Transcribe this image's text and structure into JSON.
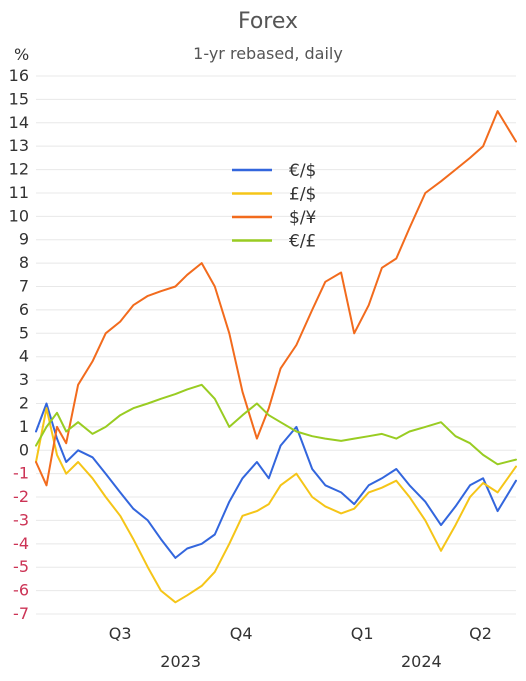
{
  "chart_data": {
    "type": "line",
    "title": "Forex",
    "subtitle": "1-yr rebased, daily",
    "ylabel": "%",
    "ylim": [
      -7,
      16
    ],
    "yticks": [
      -7,
      -6,
      -5,
      -4,
      -3,
      -2,
      -1,
      0,
      1,
      2,
      3,
      4,
      5,
      6,
      7,
      8,
      9,
      10,
      11,
      12,
      13,
      14,
      15,
      16
    ],
    "ytick_colors": {
      "negative": "#cc3355",
      "positive": "#333333"
    },
    "grid": true,
    "legend_position": "center",
    "x_range": [
      "2023-06-12",
      "2024-06-11"
    ],
    "xticks": [
      {
        "label": "Q3",
        "at": "2023-08-15"
      },
      {
        "label": "Q4",
        "at": "2023-11-15"
      },
      {
        "label": "Q1",
        "at": "2024-02-15"
      },
      {
        "label": "Q2",
        "at": "2024-05-15"
      }
    ],
    "year_labels": [
      {
        "label": "2023",
        "at": "2023-09-30"
      },
      {
        "label": "2024",
        "at": "2024-03-31"
      }
    ],
    "series": [
      {
        "name": "€/$",
        "color": "#3366dd",
        "x": [
          "2023-06-12",
          "2023-06-20",
          "2023-06-28",
          "2023-07-05",
          "2023-07-14",
          "2023-07-25",
          "2023-08-04",
          "2023-08-15",
          "2023-08-25",
          "2023-09-05",
          "2023-09-15",
          "2023-09-26",
          "2023-10-05",
          "2023-10-16",
          "2023-10-26",
          "2023-11-06",
          "2023-11-16",
          "2023-11-27",
          "2023-12-06",
          "2023-12-15",
          "2023-12-27",
          "2024-01-08",
          "2024-01-18",
          "2024-01-30",
          "2024-02-09",
          "2024-02-20",
          "2024-03-01",
          "2024-03-12",
          "2024-03-22",
          "2024-04-03",
          "2024-04-15",
          "2024-04-26",
          "2024-05-07",
          "2024-05-17",
          "2024-05-28",
          "2024-06-11"
        ],
        "y": [
          0.8,
          2.0,
          0.5,
          -0.5,
          0.0,
          -0.3,
          -1.0,
          -1.8,
          -2.5,
          -3.0,
          -3.8,
          -4.6,
          -4.2,
          -4.0,
          -3.6,
          -2.2,
          -1.2,
          -0.5,
          -1.2,
          0.2,
          1.0,
          -0.8,
          -1.5,
          -1.8,
          -2.3,
          -1.5,
          -1.2,
          -0.8,
          -1.5,
          -2.2,
          -3.2,
          -2.4,
          -1.5,
          -1.2,
          -2.6,
          -1.3
        ]
      },
      {
        "name": "£/$",
        "color": "#f5c518",
        "x": [
          "2023-06-12",
          "2023-06-20",
          "2023-06-28",
          "2023-07-05",
          "2023-07-14",
          "2023-07-25",
          "2023-08-04",
          "2023-08-15",
          "2023-08-25",
          "2023-09-05",
          "2023-09-15",
          "2023-09-26",
          "2023-10-05",
          "2023-10-16",
          "2023-10-26",
          "2023-11-06",
          "2023-11-16",
          "2023-11-27",
          "2023-12-06",
          "2023-12-15",
          "2023-12-27",
          "2024-01-08",
          "2024-01-18",
          "2024-01-30",
          "2024-02-09",
          "2024-02-20",
          "2024-03-01",
          "2024-03-12",
          "2024-03-22",
          "2024-04-03",
          "2024-04-15",
          "2024-04-26",
          "2024-05-07",
          "2024-05-17",
          "2024-05-28",
          "2024-06-11"
        ],
        "y": [
          -0.5,
          1.8,
          -0.2,
          -1.0,
          -0.5,
          -1.2,
          -2.0,
          -2.8,
          -3.8,
          -5.0,
          -6.0,
          -6.5,
          -6.2,
          -5.8,
          -5.2,
          -4.0,
          -2.8,
          -2.6,
          -2.3,
          -1.5,
          -1.0,
          -2.0,
          -2.4,
          -2.7,
          -2.5,
          -1.8,
          -1.6,
          -1.3,
          -2.0,
          -3.0,
          -4.3,
          -3.2,
          -2.0,
          -1.4,
          -1.8,
          -0.7
        ]
      },
      {
        "name": "$/¥",
        "color": "#f26b1d",
        "x": [
          "2023-06-12",
          "2023-06-20",
          "2023-06-28",
          "2023-07-05",
          "2023-07-14",
          "2023-07-25",
          "2023-08-04",
          "2023-08-15",
          "2023-08-25",
          "2023-09-05",
          "2023-09-15",
          "2023-09-26",
          "2023-10-05",
          "2023-10-16",
          "2023-10-26",
          "2023-11-06",
          "2023-11-16",
          "2023-11-27",
          "2023-12-06",
          "2023-12-15",
          "2023-12-27",
          "2024-01-08",
          "2024-01-18",
          "2024-01-30",
          "2024-02-09",
          "2024-02-20",
          "2024-03-01",
          "2024-03-12",
          "2024-03-22",
          "2024-04-03",
          "2024-04-15",
          "2024-04-26",
          "2024-05-07",
          "2024-05-17",
          "2024-05-28",
          "2024-06-11"
        ],
        "y": [
          -0.5,
          -1.5,
          1.0,
          0.3,
          2.8,
          3.8,
          5.0,
          5.5,
          6.2,
          6.6,
          6.8,
          7.0,
          7.5,
          8.0,
          7.0,
          5.0,
          2.5,
          0.5,
          1.8,
          3.5,
          4.5,
          6.0,
          7.2,
          7.6,
          5.0,
          6.2,
          7.8,
          8.2,
          9.5,
          11.0,
          11.5,
          12.0,
          12.5,
          13.0,
          14.5,
          13.2
        ]
      },
      {
        "name": "€/£",
        "color": "#99cc22",
        "x": [
          "2023-06-12",
          "2023-06-20",
          "2023-06-28",
          "2023-07-05",
          "2023-07-14",
          "2023-07-25",
          "2023-08-04",
          "2023-08-15",
          "2023-08-25",
          "2023-09-05",
          "2023-09-15",
          "2023-09-26",
          "2023-10-05",
          "2023-10-16",
          "2023-10-26",
          "2023-11-06",
          "2023-11-16",
          "2023-11-27",
          "2023-12-06",
          "2023-12-15",
          "2023-12-27",
          "2024-01-08",
          "2024-01-18",
          "2024-01-30",
          "2024-02-09",
          "2024-02-20",
          "2024-03-01",
          "2024-03-12",
          "2024-03-22",
          "2024-04-03",
          "2024-04-15",
          "2024-04-26",
          "2024-05-07",
          "2024-05-17",
          "2024-05-28",
          "2024-06-11"
        ],
        "y": [
          0.2,
          1.0,
          1.6,
          0.8,
          1.2,
          0.7,
          1.0,
          1.5,
          1.8,
          2.0,
          2.2,
          2.4,
          2.6,
          2.8,
          2.2,
          1.0,
          1.5,
          2.0,
          1.5,
          1.2,
          0.8,
          0.6,
          0.5,
          0.4,
          0.5,
          0.6,
          0.7,
          0.5,
          0.8,
          1.0,
          1.2,
          0.6,
          0.3,
          -0.2,
          -0.6,
          -0.4
        ]
      }
    ]
  }
}
